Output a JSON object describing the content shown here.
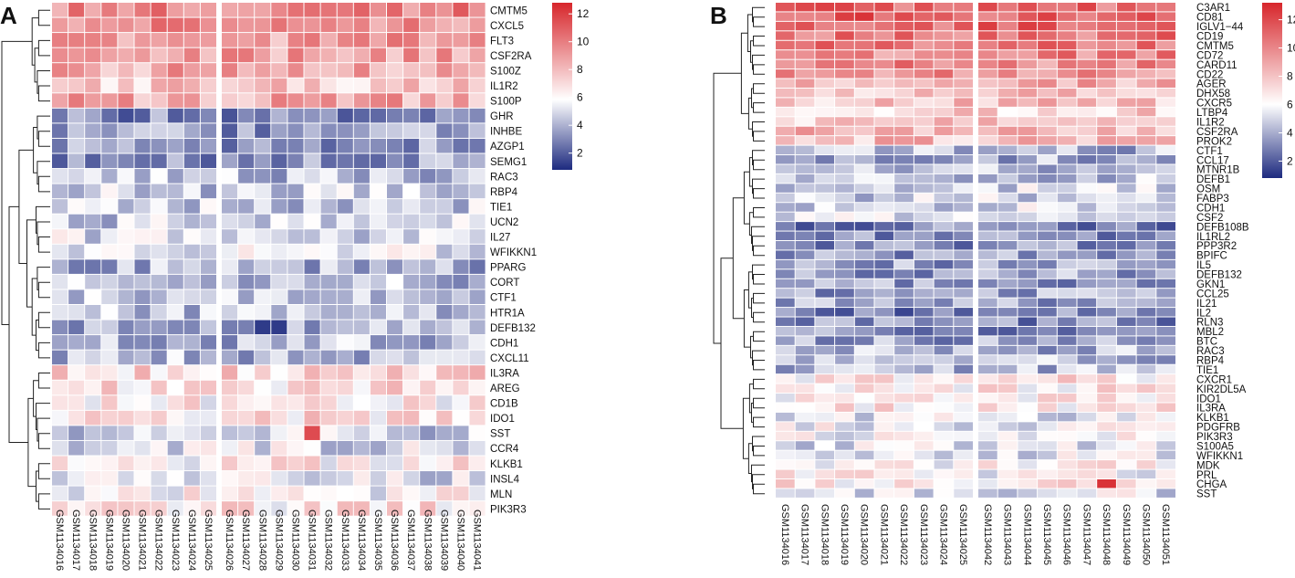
{
  "colors": {
    "low": "#1d2a7f",
    "mid": "#ffffff",
    "high": "#d7262b"
  },
  "chart_data": [
    {
      "type": "heatmap",
      "panel_label": "A",
      "title": "",
      "value_range": [
        0.8,
        12.8
      ],
      "legend": {
        "ticks": [
          2,
          4,
          6,
          8,
          10,
          12
        ],
        "placement": "right"
      },
      "gap_after_column": 9,
      "columns": [
        "GSM1134016",
        "GSM1134017",
        "GSM1134018",
        "GSM1134019",
        "GSM1134020",
        "GSM1134021",
        "GSM1134022",
        "GSM1134023",
        "GSM1134024",
        "GSM1134025",
        "GSM1134026",
        "GSM1134027",
        "GSM1134028",
        "GSM1134029",
        "GSM1134030",
        "GSM1134031",
        "GSM1134032",
        "GSM1134033",
        "GSM1134034",
        "GSM1134035",
        "GSM1134036",
        "GSM1134037",
        "GSM1134038",
        "GSM1134039",
        "GSM1134040",
        "GSM1134041"
      ],
      "rows": [
        "CMTM5",
        "CXCL5",
        "FLT3",
        "CSF2RA",
        "S100Z",
        "IL1R2",
        "S100P",
        "GHR",
        "INHBE",
        "AZGP1",
        "SEMG1",
        "RAC3",
        "RBP4",
        "TIE1",
        "UCN2",
        "IL27",
        "WFIKKN1",
        "PPARG",
        "CORT",
        "CTF1",
        "HTR1A",
        "DEFB132",
        "CDH1",
        "CXCL11",
        "IL3RA",
        "AREG",
        "CD1B",
        "IDO1",
        "SST",
        "CCR4",
        "KLKB1",
        "INSL4",
        "MLN",
        "PIK3R3"
      ],
      "row_means": [
        9.8,
        9.6,
        9.0,
        8.8,
        8.6,
        7.4,
        8.6,
        3.0,
        3.5,
        3.4,
        3.4,
        4.4,
        4.6,
        4.6,
        4.8,
        5.2,
        5.4,
        4.0,
        4.4,
        4.4,
        4.4,
        3.8,
        4.2,
        4.2,
        7.0,
        6.8,
        6.4,
        6.8,
        4.8,
        5.2,
        6.4,
        5.0,
        6.0,
        6.6
      ],
      "row_dendrogram": [
        {
          "leaves": [
            0,
            1,
            2,
            3,
            4,
            5,
            6
          ]
        },
        {
          "leaves": [
            7,
            8,
            9,
            10,
            11,
            12,
            13,
            14,
            15,
            16,
            17,
            18,
            19,
            20,
            21,
            22,
            23
          ]
        },
        {
          "leaves": [
            24,
            25,
            26,
            27,
            28,
            29,
            30,
            31,
            32,
            33
          ]
        }
      ]
    },
    {
      "type": "heatmap",
      "panel_label": "B",
      "title": "",
      "value_range": [
        0.8,
        13.2
      ],
      "legend": {
        "ticks": [
          2,
          4,
          6,
          8,
          10,
          12
        ],
        "placement": "right"
      },
      "gap_after_column": 9,
      "columns": [
        "GSM1134016",
        "GSM1134017",
        "GSM1134018",
        "GSM1134019",
        "GSM1134020",
        "GSM1134021",
        "GSM1134022",
        "GSM1134023",
        "GSM1134024",
        "GSM1134025",
        "GSM1134042",
        "GSM1134043",
        "GSM1134044",
        "GSM1134045",
        "GSM1134046",
        "GSM1134047",
        "GSM1134048",
        "GSM1134049",
        "GSM1134050",
        "GSM1134051"
      ],
      "rows": [
        "C3AR1",
        "CD81",
        "IGLV1−44",
        "CD19",
        "CMTM5",
        "CD72",
        "CARD11",
        "CD22",
        "AGER",
        "DHX58",
        "CXCR5",
        "LTBP4",
        "IL1R2",
        "CSF2RA",
        "PROK2",
        "CTF1",
        "CCL17",
        "MTNR1B",
        "DEFB1",
        "OSM",
        "FABP3",
        "CDH1",
        "CSF2",
        "DEFB108B",
        "IL1RL2",
        "PPP3R2",
        "BPIFC",
        "IL5",
        "DEFB132",
        "GKN1",
        "CCL25",
        "IL21",
        "IL2",
        "RLN3",
        "MBL2",
        "BTC",
        "RAC3",
        "RBP4",
        "TIE1",
        "CXCR1",
        "KIR2DL5A",
        "IDO1",
        "IL3RA",
        "KLKB1",
        "PDGFRB",
        "PIK3R3",
        "S100A5",
        "WFIKKN1",
        "MDK",
        "PRL",
        "CHGA",
        "SST"
      ],
      "row_means": [
        10.8,
        11.2,
        11.0,
        10.6,
        10.2,
        10.0,
        9.8,
        9.6,
        8.6,
        8.0,
        8.0,
        7.6,
        7.6,
        8.6,
        8.2,
        4.2,
        4.0,
        4.2,
        4.6,
        5.0,
        5.0,
        5.2,
        5.2,
        3.0,
        3.4,
        3.4,
        3.6,
        3.6,
        3.8,
        3.6,
        3.8,
        3.6,
        3.0,
        3.2,
        3.2,
        3.8,
        4.2,
        4.2,
        4.4,
        6.8,
        6.8,
        6.6,
        6.6,
        5.6,
        5.8,
        5.8,
        5.4,
        5.4,
        6.4,
        6.2,
        6.6,
        5.4
      ],
      "row_dendrogram": [
        {
          "leaves": [
            0,
            1,
            2,
            3,
            4,
            5,
            6,
            7,
            8,
            9,
            10,
            11,
            12,
            13,
            14
          ]
        },
        {
          "leaves": [
            15,
            16,
            17,
            18,
            19,
            20,
            21,
            22,
            23,
            24,
            25,
            26,
            27,
            28,
            29,
            30,
            31,
            32,
            33,
            34,
            35,
            36,
            37,
            38
          ]
        },
        {
          "leaves": [
            39,
            40,
            41,
            42,
            43,
            44,
            45,
            46,
            47,
            48,
            49,
            50,
            51
          ]
        }
      ]
    }
  ]
}
